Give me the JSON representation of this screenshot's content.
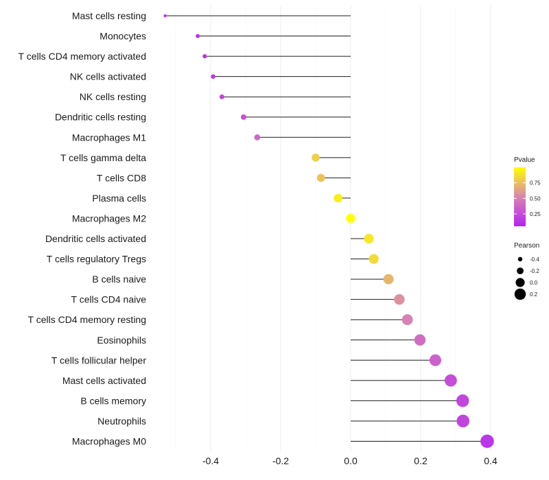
{
  "chart_data": {
    "type": "lollipop",
    "title": "",
    "xlabel": "",
    "ylabel": "",
    "xlim": [
      -0.5,
      0.4
    ],
    "x_ticks": [
      -0.4,
      -0.2,
      0.0,
      0.2,
      0.4
    ],
    "x_tick_labels": [
      "-0.4",
      "-0.2",
      "0.0",
      "0.2",
      "0.4"
    ],
    "grid": true,
    "categories": [
      "Mast cells resting",
      "Monocytes",
      "T cells CD4 memory activated",
      "NK cells activated",
      "NK cells resting",
      "Dendritic cells resting",
      "Macrophages M1",
      "T cells gamma delta",
      "T cells CD8",
      "Plasma cells",
      "Macrophages M2",
      "Dendritic cells activated",
      "T cells regulatory  Tregs ",
      "B cells naive",
      "T cells CD4 naive",
      "T cells CD4 memory resting",
      "Eosinophils",
      "T cells follicular helper",
      "Mast cells activated",
      "B cells memory",
      "Neutrophils",
      "Macrophages M0"
    ],
    "pearson": [
      -0.53,
      -0.437,
      -0.417,
      -0.393,
      -0.368,
      -0.306,
      -0.267,
      -0.1,
      -0.085,
      -0.036,
      0.0,
      0.052,
      0.066,
      0.108,
      0.139,
      0.162,
      0.198,
      0.242,
      0.286,
      0.32,
      0.321,
      0.39
    ],
    "pvalue": [
      0.05,
      0.06,
      0.08,
      0.12,
      0.18,
      0.25,
      0.35,
      0.8,
      0.75,
      0.93,
      1.0,
      0.9,
      0.85,
      0.7,
      0.55,
      0.48,
      0.38,
      0.32,
      0.22,
      0.18,
      0.17,
      0.1
    ],
    "legend": {
      "position": "right",
      "color_title": "Pvalue",
      "color_ticks": [
        "0.75",
        "0.50",
        "0.25"
      ],
      "color_tick_values": [
        0.75,
        0.5,
        0.25
      ],
      "color_low": "#b522f7",
      "color_mid": "#d985b0",
      "color_high": "#ffff00",
      "size_title": "Pearson",
      "size_ticks": [
        "-0.4",
        "-0.2",
        "0.0",
        "0.2"
      ],
      "size_tick_values": [
        -0.4,
        -0.2,
        0.0,
        0.2
      ]
    }
  }
}
